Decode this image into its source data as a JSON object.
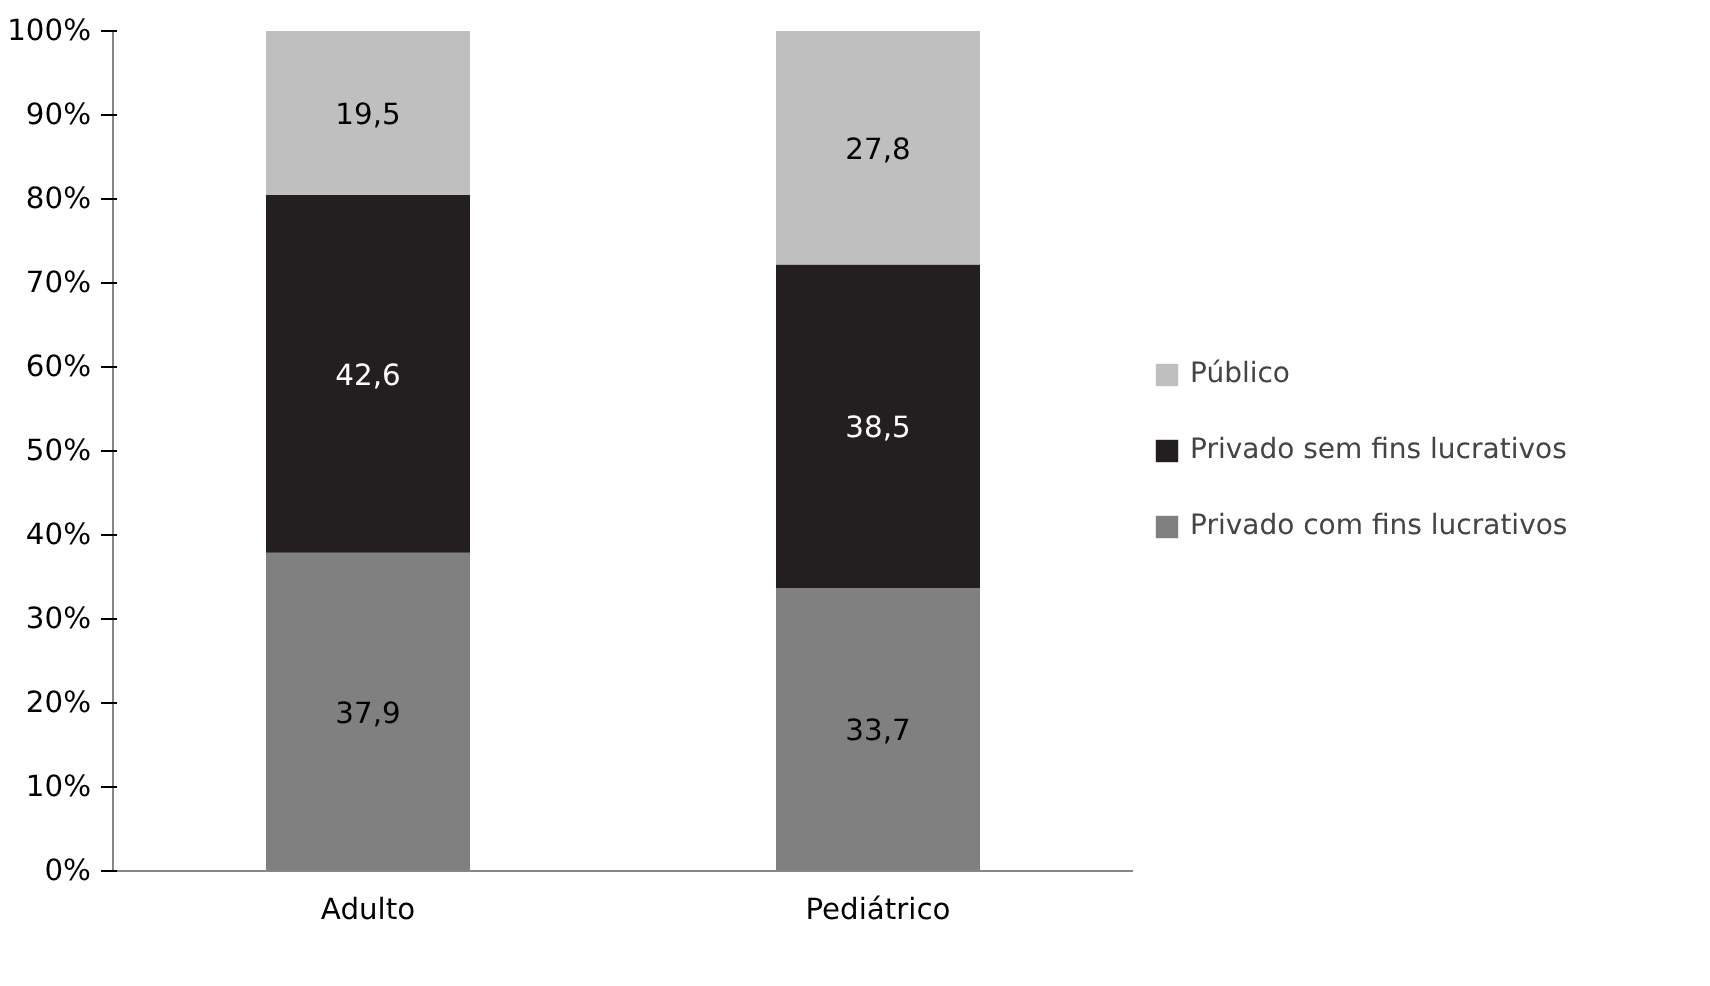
{
  "chart_data": {
    "type": "bar",
    "stacked": true,
    "categories": [
      "Adulto",
      "Pediátrico"
    ],
    "series": [
      {
        "name": "Privado com fins lucrativos",
        "color": "#808080",
        "values": [
          37.9,
          33.7
        ],
        "value_labels": [
          "37,9",
          "33,7"
        ]
      },
      {
        "name": "Privado sem fins lucrativos",
        "color": "#231f20",
        "values": [
          42.6,
          38.5
        ],
        "value_labels": [
          "42,6",
          "38,5"
        ]
      },
      {
        "name": "Público",
        "color": "#bfbfbf",
        "values": [
          19.5,
          27.8
        ],
        "value_labels": [
          "19,5",
          "27,8"
        ]
      }
    ],
    "ylim": [
      0,
      100
    ],
    "yticks": [
      {
        "value": 0,
        "label": "0%"
      },
      {
        "value": 10,
        "label": "10%"
      },
      {
        "value": 20,
        "label": "20%"
      },
      {
        "value": 30,
        "label": "30%"
      },
      {
        "value": 40,
        "label": "40%"
      },
      {
        "value": 50,
        "label": "50%"
      },
      {
        "value": 60,
        "label": "60%"
      },
      {
        "value": 70,
        "label": "70%"
      },
      {
        "value": 80,
        "label": "80%"
      },
      {
        "value": 90,
        "label": "90%"
      },
      {
        "value": 100,
        "label": "100%"
      }
    ],
    "legend": "right"
  }
}
